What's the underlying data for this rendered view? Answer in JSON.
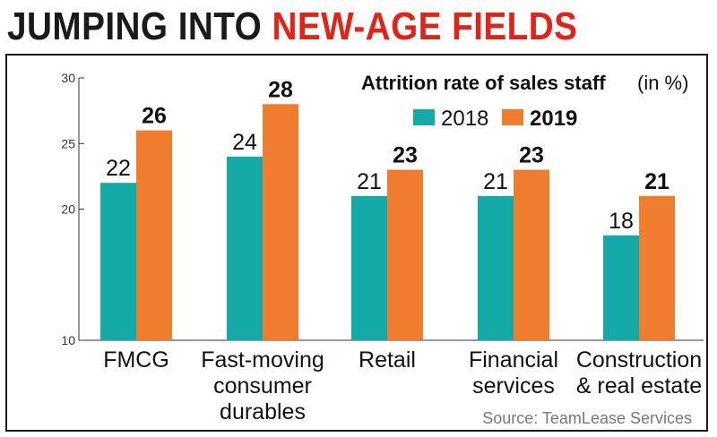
{
  "headline": {
    "part1": "JUMPING INTO",
    "part2": "NEW-AGE FIELDS"
  },
  "colors": {
    "series_2018": "#14aaa8",
    "series_2019": "#f07c2e",
    "headline_red": "#e2231a"
  },
  "chart_data": {
    "type": "bar",
    "title": "Attrition rate of sales staff",
    "title_unit": "(in %)",
    "categories": [
      [
        "FMCG"
      ],
      [
        "Fast-moving",
        "consumer",
        "durables"
      ],
      [
        "Retail"
      ],
      [
        "Financial",
        "services"
      ],
      [
        "Construction",
        "& real estate"
      ]
    ],
    "series": [
      {
        "name": "2018",
        "values": [
          22,
          24,
          21,
          21,
          18
        ]
      },
      {
        "name": "2019",
        "values": [
          26,
          28,
          23,
          23,
          21
        ]
      }
    ],
    "ylim": [
      10,
      30
    ],
    "yticks": [
      "10",
      "20",
      "25",
      "30"
    ],
    "legend_position": "top-right",
    "grid": false
  },
  "source": "Source: TeamLease Services"
}
